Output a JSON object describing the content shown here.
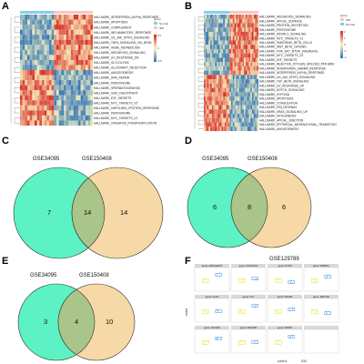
{
  "panels": {
    "a": {
      "letter": "A"
    },
    "b": {
      "letter": "B"
    },
    "c": {
      "letter": "C"
    },
    "d": {
      "letter": "D"
    },
    "e": {
      "letter": "E"
    },
    "f": {
      "letter": "F"
    }
  },
  "heatmap_a": {
    "legend_title": "group",
    "legend_entries": [
      "Normal",
      "IDD"
    ],
    "scale_ticks": [
      "0.5",
      "0",
      "-0.5"
    ],
    "colors": {
      "high": "#d7302b",
      "mid": "#fbf8c0",
      "low": "#3a78b5",
      "normal": "#7fd1e9",
      "idd": "#f3c6c6"
    },
    "pathways": [
      "HALLMARK_INTERFERON_ALPHA_RESPONSE",
      "HALLMARK_APOPTOSIS",
      "HALLMARK_COMPLEMENT",
      "HALLMARK_INFLAMMATORY_RESPONSE",
      "HALLMARK_IL6_JAK_STAT3_SIGNALING",
      "HALLMARK_TNFA_SIGNALING_VIA_NFKB",
      "HALLMARK_HEME_METABOLISM",
      "HALLMARK_HEDGEHOG_SIGNALING",
      "HALLMARK_UV_RESPONSE_DN",
      "HALLMARK_GLYCOLYSIS",
      "HALLMARK_ALLOGRAFT_REJECTION",
      "HALLMARK_ANGIOGENESIS",
      "HALLMARK_DNA_REPAIR",
      "HALLMARK_PEROXISOME",
      "HALLMARK_SPERMATOGENESIS",
      "HALLMARK_G2M_CHECKPOINT",
      "HALLMARK_E2F_TARGETS",
      "HALLMARK_MYC_TARGETS_V2",
      "HALLMARK_UNFOLDED_PROTEIN_RESPONSE",
      "HALLMARK_PEROXISOME",
      "HALLMARK_MYC_TARGETS_V1",
      "HALLMARK_OXIDATIVE_PHOSPHORYLATION"
    ]
  },
  "heatmap_b": {
    "legend_title": "group",
    "legend_entries": [
      "IDD",
      "Normal"
    ],
    "scale_ticks": [
      "2",
      "1",
      "0",
      "-1",
      "-2"
    ],
    "pathways": [
      "HALLMARK_HEDGEHOG_SIGNALING",
      "HALLMARK_APICAL_SURFACE",
      "HALLMARK_PROTEIN_SECRETION",
      "HALLMARK_PEROXISOME",
      "HALLMARK_MTORC1_SIGNALING",
      "HALLMARK_MYC_TARGETS_V1",
      "HALLMARK_PANCREAS_BETA_CELLS",
      "HALLMARK_WNT_BETA_CATENIN",
      "HALLMARK_PI3K_AKT_MTOR_SIGNALING",
      "HALLMARK_MYC_TARGETS_V2",
      "HALLMARK_E2F_TARGETS",
      "HALLMARK_REACTIVE_OXYGEN_SPECIES_PATHWAY",
      "HALLMARK_INTERFERON_GAMMA_RESPONSE",
      "HALLMARK_INTERFERON_ALPHA_RESPONSE",
      "HALLMARK_IL6_JAK_STAT3_SIGNALING",
      "HALLMARK_TGF_BETA_SIGNALING",
      "HALLMARK_UV_RESPONSE_UP",
      "HALLMARK_NOTCH_SIGNALING",
      "HALLMARK_HYPOXIA",
      "HALLMARK_APOPTOSIS",
      "HALLMARK_COAGULATION",
      "HALLMARK_P53_PATHWAY",
      "HALLMARK_KRAS_SIGNALING_UP",
      "HALLMARK_MYOGENESIS",
      "HALLMARK_APICAL_JUNCTION",
      "HALLMARK_EPITHELIAL_MESENCHYMAL_TRANSITION",
      "HALLMARK_ANGIOGENESIS"
    ]
  },
  "venn_c": {
    "left": "GSE34095",
    "right": "GSE150408",
    "only_left": "7",
    "overlap": "14",
    "only_right": "14"
  },
  "venn_d": {
    "left": "GSE34095",
    "right": "GSE150408",
    "only_left": "6",
    "overlap": "8",
    "only_right": "6"
  },
  "venn_e": {
    "left": "GSE34095",
    "right": "GSE150408",
    "only_left": "3",
    "overlap": "4",
    "only_right": "10"
  },
  "venn_colors": {
    "left": "#5cf2c4",
    "right": "#f6d9a6",
    "overlap": "#a9c58a"
  },
  "boxplots": {
    "title": "GSE129789",
    "ylabel": "value",
    "x_categories": [
      "control",
      "IDD"
    ],
    "genes": [
      "gene: ARHGAP27",
      "gene: CDKN2A1",
      "gene: ETV5",
      "gene: FNBP1L",
      "gene: KLF4",
      "gene: LTF",
      "gene: MGAM",
      "gene: MRO1E",
      "gene: NUCB2",
      "gene: RNF186",
      "gene: WWP2",
      ""
    ],
    "colors": {
      "control": "#e6e21c",
      "idd": "#3a90e0",
      "strip": "#d9d9d9"
    }
  }
}
